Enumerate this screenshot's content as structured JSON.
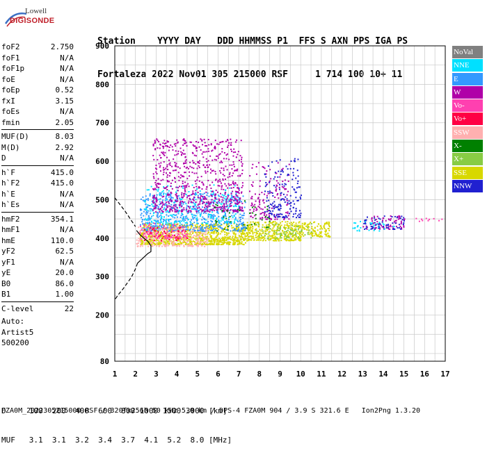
{
  "logo": {
    "line1": "Lowell",
    "line2": "DIGISONDE"
  },
  "header": {
    "line1": "Station    YYYY DAY   DDD HHMMSS P1  FFS S AXN PPS IGA PS",
    "line2": "Fortaleza 2022 Nov01 305 215000 RSF     1 714 100 10+ 11"
  },
  "params": [
    {
      "k": "foF2",
      "v": "2.750"
    },
    {
      "k": "foF1",
      "v": "N/A"
    },
    {
      "k": "foF1p",
      "v": "N/A"
    },
    {
      "k": "foE",
      "v": "N/A"
    },
    {
      "k": "foEp",
      "v": "0.52"
    },
    {
      "k": "fxI",
      "v": "3.15"
    },
    {
      "k": "foEs",
      "v": "N/A"
    },
    {
      "k": "fmin",
      "v": "2.05"
    },
    {
      "k": "MUF(D)",
      "v": "8.03"
    },
    {
      "k": "M(D)",
      "v": "2.92"
    },
    {
      "k": "D",
      "v": "N/A"
    },
    {
      "k": "h`F",
      "v": "415.0"
    },
    {
      "k": "h`F2",
      "v": "415.0"
    },
    {
      "k": "h`E",
      "v": "N/A"
    },
    {
      "k": "h`Es",
      "v": "N/A"
    },
    {
      "k": "hmF2",
      "v": "354.1"
    },
    {
      "k": "hmF1",
      "v": "N/A"
    },
    {
      "k": "hmE",
      "v": "110.0"
    },
    {
      "k": "yF2",
      "v": "62.5"
    },
    {
      "k": "yF1",
      "v": "N/A"
    },
    {
      "k": "yE",
      "v": "20.0"
    },
    {
      "k": "B0",
      "v": "86.0"
    },
    {
      "k": "B1",
      "v": "1.00"
    },
    {
      "k": "C-level",
      "v": "22"
    }
  ],
  "auto": {
    "line1": "Auto:",
    "line2": "Artist5",
    "line3": "500200"
  },
  "legend": [
    {
      "label": "NoVal",
      "color": "#808080"
    },
    {
      "label": "NNE",
      "color": "#00e0ff"
    },
    {
      "label": "E",
      "color": "#3399ff"
    },
    {
      "label": "W",
      "color": "#b000a8"
    },
    {
      "label": "Vo-",
      "color": "#ff40b0"
    },
    {
      "label": "Vo+",
      "color": "#ff0044"
    },
    {
      "label": "SSW",
      "color": "#ffb0b0"
    },
    {
      "label": "X-",
      "color": "#008000"
    },
    {
      "label": "X+",
      "color": "#88cc44"
    },
    {
      "label": "SSE",
      "color": "#d8d800"
    },
    {
      "label": "NNW",
      "color": "#2020d0"
    }
  ],
  "footer": {
    "line1": "D     100  200  400  600  800 1000 1500 3000 [km]",
    "line2": "MUF   3.1  3.1  3.2  3.4  3.7  4.1  5.2  8.0 [MHz]",
    "line3": "FZA0M_2022305215000.RSF / 320fx256h 50 kHz 5.0 km / DPS-4 FZA0M 904 / 3.9 S 321.6 E   Ion2Png 1.3.20"
  },
  "chart_data": {
    "type": "scatter",
    "xlim": [
      1,
      17
    ],
    "ylim": [
      80,
      900
    ],
    "x_ticks": [
      1,
      2,
      3,
      4,
      5,
      6,
      7,
      8,
      9,
      10,
      11,
      12,
      13,
      14,
      15,
      16,
      17
    ],
    "y_ticks": [
      80,
      200,
      300,
      400,
      500,
      600,
      700,
      800,
      900
    ],
    "grid": true,
    "profile_curve": [
      [
        2.05,
        420
      ],
      [
        2.2,
        410
      ],
      [
        2.4,
        400
      ],
      [
        2.6,
        392
      ],
      [
        2.75,
        380
      ],
      [
        2.75,
        365
      ],
      [
        2.6,
        360
      ],
      [
        2.3,
        345
      ],
      [
        2.1,
        335
      ],
      [
        2.0,
        320
      ],
      [
        1.8,
        298
      ],
      [
        1.6,
        283
      ],
      [
        1.4,
        268
      ],
      [
        1.2,
        255
      ],
      [
        1.0,
        240
      ]
    ],
    "profile_dashed_from": 8,
    "clusters": [
      {
        "name": "SSE",
        "x": [
          2.2,
          7.3
        ],
        "y": [
          385,
          440
        ],
        "count": 900
      },
      {
        "name": "SSE",
        "x": [
          7.2,
          10.0
        ],
        "y": [
          395,
          445
        ],
        "count": 350
      },
      {
        "name": "SSE",
        "x": [
          10.0,
          11.4
        ],
        "y": [
          405,
          445
        ],
        "count": 120
      },
      {
        "name": "E",
        "x": [
          2.2,
          7.3
        ],
        "y": [
          420,
          520
        ],
        "count": 650
      },
      {
        "name": "NNE",
        "x": [
          2.4,
          7.0
        ],
        "y": [
          440,
          540
        ],
        "count": 220
      },
      {
        "name": "SSW",
        "x": [
          2.0,
          5.5
        ],
        "y": [
          380,
          430
        ],
        "count": 260
      },
      {
        "name": "W",
        "x": [
          2.8,
          7.2
        ],
        "y": [
          470,
          660
        ],
        "count": 750
      },
      {
        "name": "W",
        "x": [
          7.5,
          9.5
        ],
        "y": [
          450,
          600
        ],
        "count": 140
      },
      {
        "name": "NNW",
        "x": [
          8.2,
          10.0
        ],
        "y": [
          455,
          610
        ],
        "count": 160
      },
      {
        "name": "Vo-",
        "x": [
          2.2,
          4.5
        ],
        "y": [
          400,
          440
        ],
        "count": 110
      },
      {
        "name": "X+",
        "x": [
          7.8,
          10.5
        ],
        "y": [
          400,
          440
        ],
        "count": 80
      },
      {
        "name": "X-",
        "x": [
          5.8,
          8.5
        ],
        "y": [
          420,
          500
        ],
        "count": 40
      },
      {
        "name": "Vo+",
        "x": [
          2.3,
          4.5
        ],
        "y": [
          395,
          430
        ],
        "count": 40
      },
      {
        "name": "W",
        "x": [
          13.0,
          15.0
        ],
        "y": [
          425,
          460
        ],
        "count": 70
      },
      {
        "name": "NNW",
        "x": [
          13.0,
          15.0
        ],
        "y": [
          425,
          460
        ],
        "count": 60
      },
      {
        "name": "NNE",
        "x": [
          12.5,
          14.5
        ],
        "y": [
          420,
          445
        ],
        "count": 30
      },
      {
        "name": "Vo-",
        "x": [
          15.5,
          17.0
        ],
        "y": [
          445,
          455
        ],
        "count": 10
      }
    ]
  }
}
